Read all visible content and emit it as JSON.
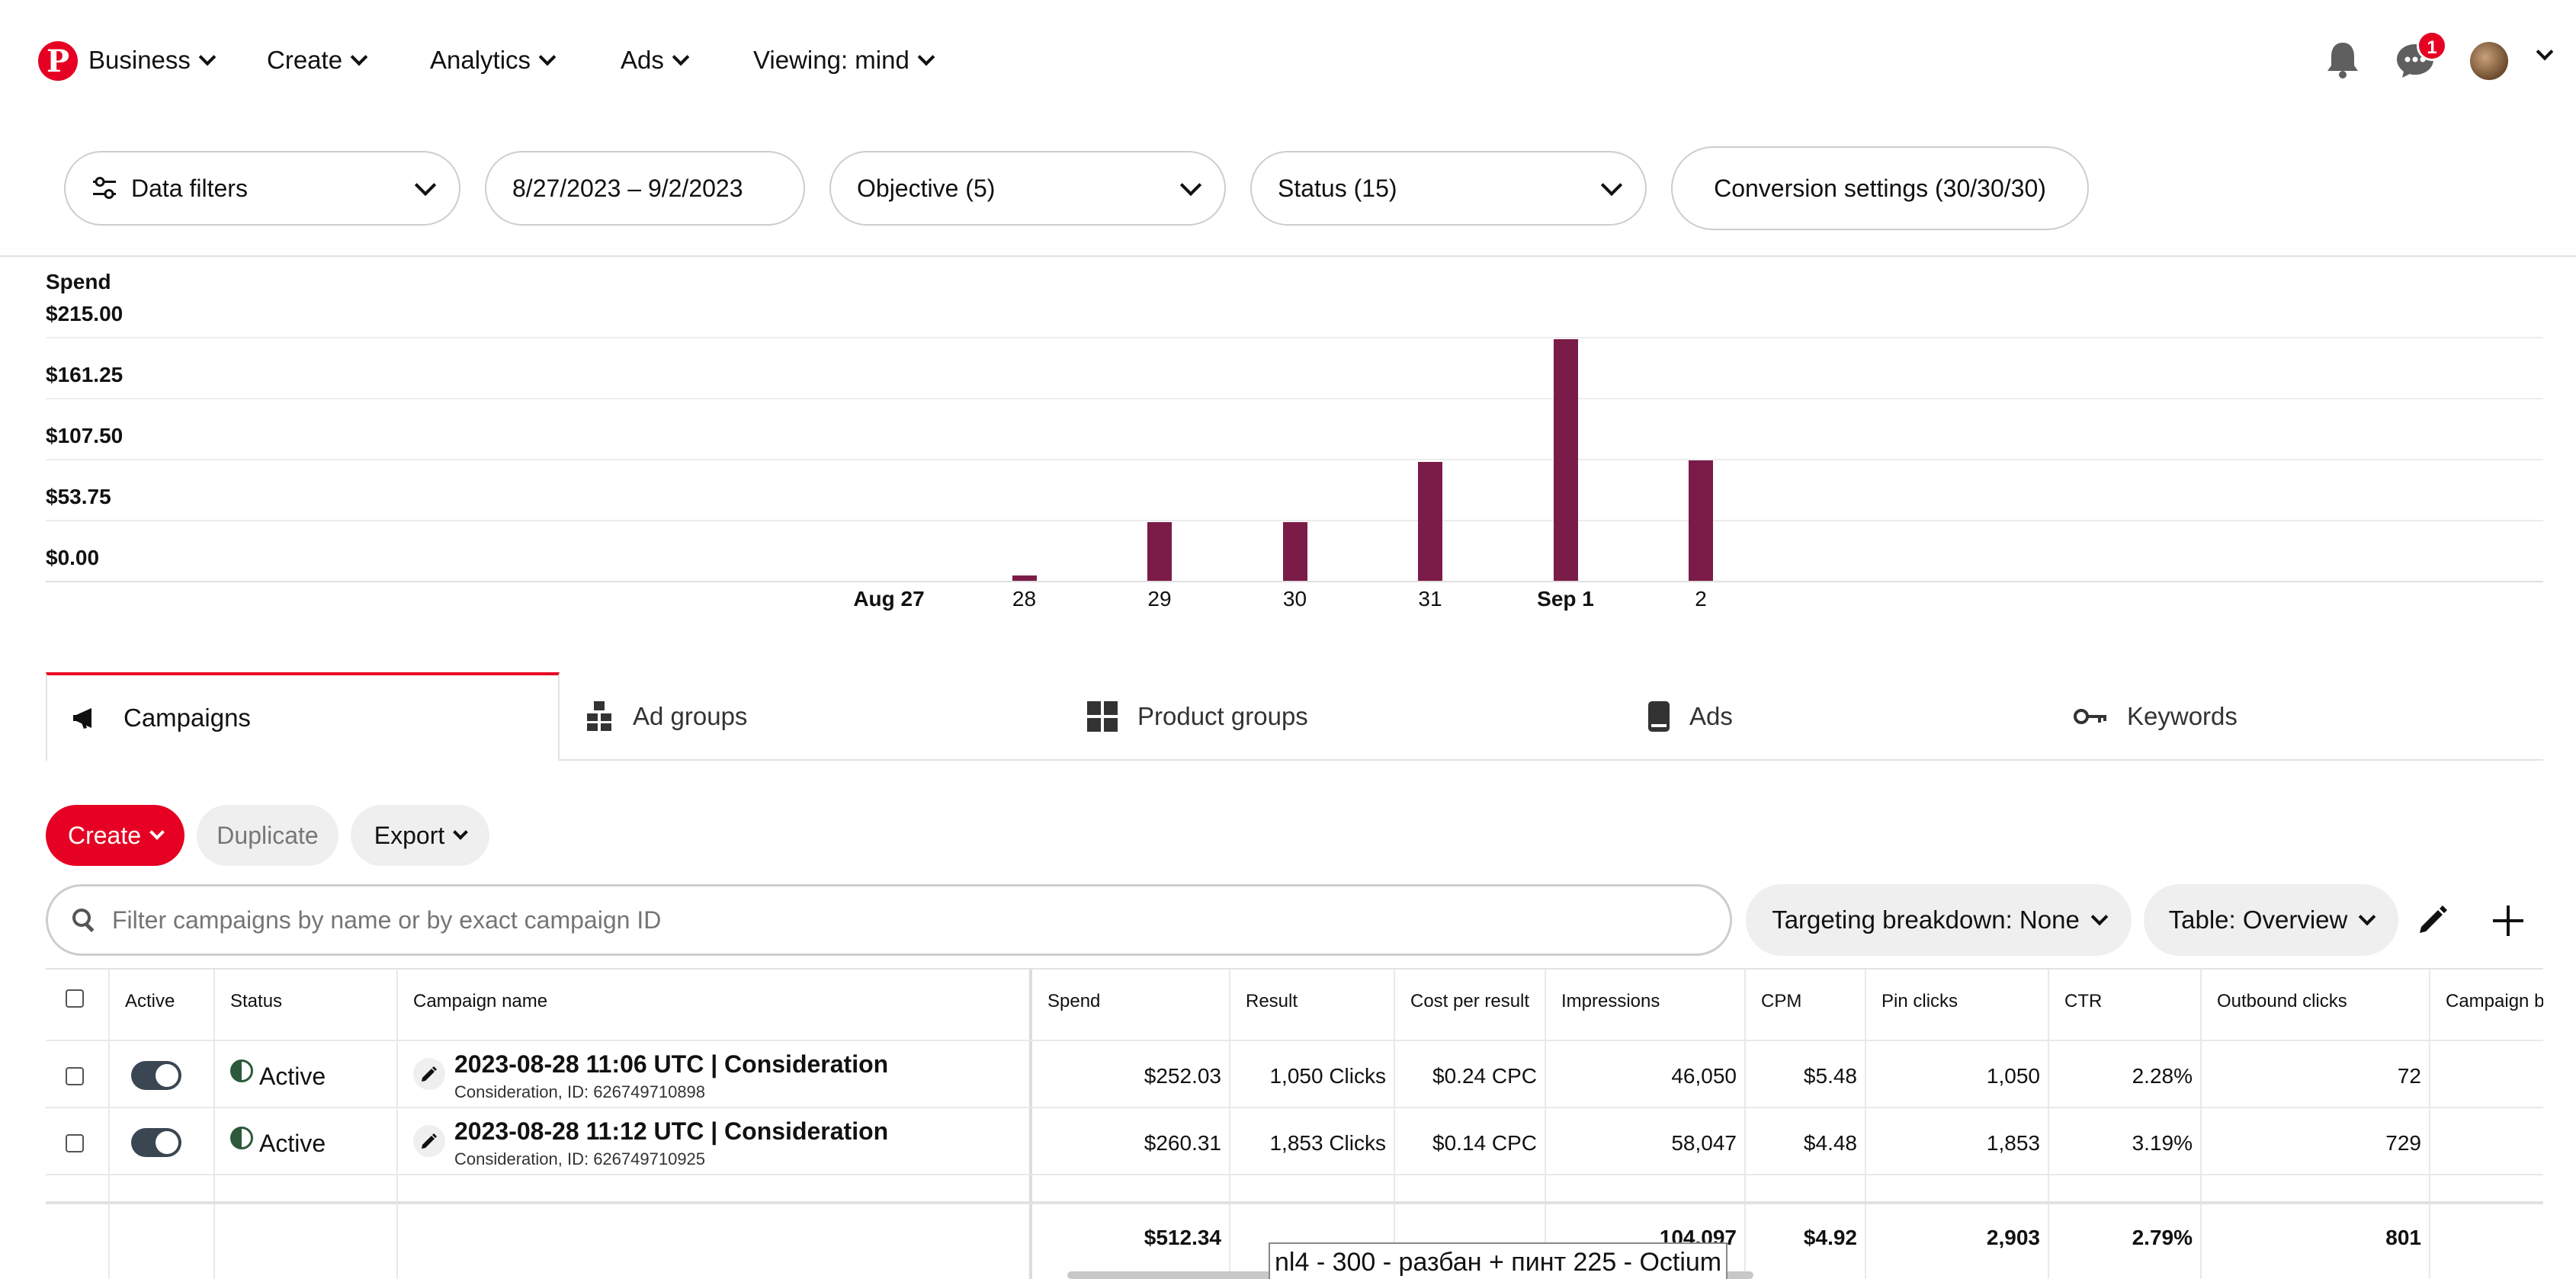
{
  "nav": {
    "items": [
      {
        "label": "Business"
      },
      {
        "label": "Create"
      },
      {
        "label": "Analytics"
      },
      {
        "label": "Ads"
      },
      {
        "label": "Viewing: mind"
      }
    ],
    "messages_badge": "1"
  },
  "filters": {
    "data_filters": "Data filters",
    "date_range": "8/27/2023 – 9/2/2023",
    "objective": "Objective (5)",
    "status": "Status (15)",
    "conversion": "Conversion settings (30/30/30)"
  },
  "chart_data": {
    "type": "bar",
    "title": "Spend",
    "ylabel": "Spend",
    "yticks": [
      "$215.00",
      "$161.25",
      "$107.50",
      "$53.75",
      "$0.00"
    ],
    "ylim": [
      0,
      215
    ],
    "categories": [
      "Aug 27",
      "28",
      "29",
      "30",
      "31",
      "Sep 1",
      "2"
    ],
    "values": [
      0,
      5,
      52,
      52,
      105,
      213,
      106
    ],
    "bar_color": "#7b1c48",
    "grid": true
  },
  "tabs": [
    {
      "label": "Campaigns",
      "icon": "megaphone-icon"
    },
    {
      "label": "Ad groups",
      "icon": "ad-groups-icon"
    },
    {
      "label": "Product groups",
      "icon": "grid-icon"
    },
    {
      "label": "Ads",
      "icon": "phone-icon"
    },
    {
      "label": "Keywords",
      "icon": "key-icon"
    }
  ],
  "actions": {
    "create": "Create",
    "duplicate": "Duplicate",
    "export": "Export"
  },
  "search": {
    "placeholder": "Filter campaigns by name or by exact campaign ID"
  },
  "toolbar": {
    "targeting": "Targeting breakdown: None",
    "table": "Table: Overview"
  },
  "table": {
    "headers": [
      "Active",
      "Status",
      "Campaign name",
      "Spend",
      "Result",
      "Cost per result",
      "Impressions",
      "CPM",
      "Pin clicks",
      "CTR",
      "Outbound clicks",
      "Campaign b"
    ],
    "rows": [
      {
        "status": "Active",
        "name": "2023-08-28 11:06 UTC | Consideration",
        "sub": "Consideration, ID: 626749710898",
        "spend": "$252.03",
        "result": "1,050 Clicks",
        "cpr": "$0.24 CPC",
        "impressions": "46,050",
        "cpm": "$5.48",
        "pin_clicks": "1,050",
        "ctr": "2.28%",
        "outbound": "72"
      },
      {
        "status": "Active",
        "name": "2023-08-28 11:12 UTC | Consideration",
        "sub": "Consideration, ID: 626749710925",
        "spend": "$260.31",
        "result": "1,853 Clicks",
        "cpr": "$0.14 CPC",
        "impressions": "58,047",
        "cpm": "$4.48",
        "pin_clicks": "1,853",
        "ctr": "3.19%",
        "outbound": "729"
      }
    ],
    "totals": {
      "spend": "$512.34",
      "impressions": "104,097",
      "cpm": "$4.92",
      "pin_clicks": "2,903",
      "ctr": "2.79%",
      "outbound": "801"
    }
  },
  "tooltip": "nl4 - 300 - разбан + пинт 225 - Octium",
  "colors": {
    "accent": "#e60023",
    "bar": "#7b1c48"
  }
}
